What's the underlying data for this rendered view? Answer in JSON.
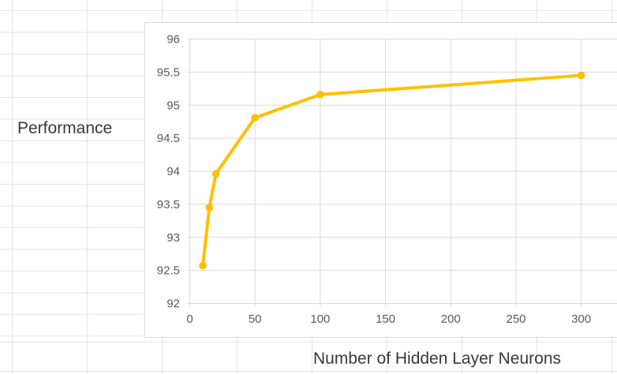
{
  "chart_data": {
    "type": "line",
    "title": "",
    "xlabel": "Number of Hidden Layer Neurons",
    "ylabel": "Performance",
    "x": [
      10,
      15,
      20,
      50,
      100,
      300
    ],
    "y": [
      92.57,
      93.45,
      93.96,
      94.81,
      95.16,
      95.45
    ],
    "series": [
      {
        "name": "Performance",
        "x": [
          10,
          15,
          20,
          50,
          100,
          300
        ],
        "values": [
          92.57,
          93.45,
          93.96,
          94.81,
          95.16,
          95.45
        ]
      }
    ],
    "x_ticks": [
      0,
      50,
      100,
      150,
      200,
      250,
      300
    ],
    "x_tick_labels": [
      "0",
      "50",
      "100",
      "150",
      "200",
      "250",
      "300"
    ],
    "y_ticks": [
      92,
      92.5,
      93,
      93.5,
      94,
      94.5,
      95,
      95.5,
      96
    ],
    "y_tick_labels": [
      "92",
      "92.5",
      "93",
      "93.5",
      "94",
      "94.5",
      "95",
      "95.5",
      "96"
    ],
    "xlim": [
      0,
      328
    ],
    "ylim": [
      92,
      96
    ],
    "grid": true,
    "legend": "none",
    "marker": "circle",
    "line_color": "#FFC000",
    "gridline_color": "#D9D9D9",
    "tick_label_color": "#595959",
    "axis_title_color": "#3A3A3A"
  }
}
